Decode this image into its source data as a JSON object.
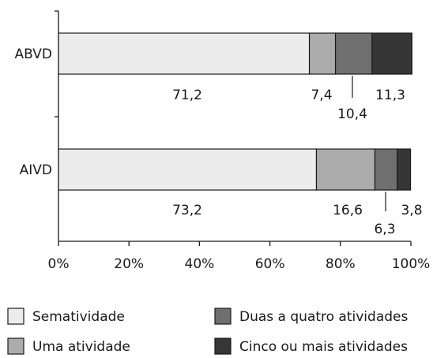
{
  "chart_data": {
    "type": "bar",
    "orientation": "horizontal",
    "stacked": true,
    "title": "",
    "xlabel": "",
    "ylabel": "",
    "xlim": [
      0,
      100
    ],
    "grid": false,
    "legend_position": "bottom",
    "categories": [
      "ABVD",
      "AIVD"
    ],
    "x_tick_labels": [
      "0%",
      "20%",
      "40%",
      "60%",
      "80%",
      "100%"
    ],
    "series": [
      {
        "name": "Sematividade",
        "color": "#ececec",
        "values": [
          71.2,
          73.2
        ],
        "labels": [
          "71,2",
          "73,2"
        ]
      },
      {
        "name": "Uma atividade",
        "color": "#acacac",
        "values": [
          7.4,
          16.6
        ],
        "labels": [
          "7,4",
          "16,6"
        ]
      },
      {
        "name": "Duas a quatro atividades",
        "color": "#6f6f6f",
        "values": [
          10.4,
          6.3
        ],
        "labels": [
          "10,4",
          "6,3"
        ]
      },
      {
        "name": "Cinco ou mais atividades",
        "color": "#363636",
        "values": [
          11.3,
          3.8
        ],
        "labels": [
          "11,3",
          "3,8"
        ]
      }
    ]
  }
}
